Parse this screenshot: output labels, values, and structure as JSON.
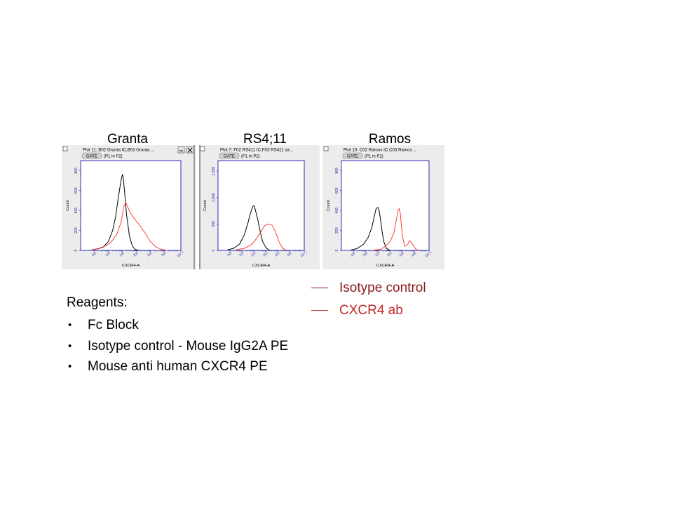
{
  "chart_data": [
    {
      "type": "line",
      "title": "Granta",
      "window_title": "Plot 11: B02 Granta IC,B03 Granta ...",
      "gate_button": "GATE",
      "gate_text": "(P1 in P2)",
      "xlabel": "CXCR4-A",
      "ylabel": "Count",
      "x_scale": "log",
      "x_ticks": [
        "10¹",
        "10²",
        "10³",
        "10⁴",
        "10⁵",
        "10⁶",
        "10⁷.²"
      ],
      "xlim": [
        0,
        7.2
      ],
      "y_ticks": [
        "0",
        "200",
        "400",
        "600",
        "800"
      ],
      "ylim": [
        0,
        900
      ],
      "grid": false,
      "series": [
        {
          "name": "Isotype control",
          "color": "#000000",
          "x": [
            0.8,
            1.2,
            1.6,
            2.0,
            2.3,
            2.5,
            2.7,
            2.9,
            3.0,
            3.05,
            3.15,
            3.3,
            3.5,
            3.7,
            3.9,
            4.2
          ],
          "y": [
            5,
            15,
            30,
            90,
            200,
            330,
            520,
            700,
            760,
            740,
            600,
            360,
            150,
            50,
            10,
            0
          ]
        },
        {
          "name": "CXCR4 ab",
          "color": "#ff2a2a",
          "x": [
            0.8,
            1.3,
            1.8,
            2.2,
            2.6,
            2.9,
            3.1,
            3.25,
            3.4,
            3.6,
            3.9,
            4.2,
            4.6,
            5.0,
            5.4,
            5.8,
            6.2
          ],
          "y": [
            5,
            20,
            45,
            85,
            160,
            280,
            440,
            480,
            430,
            370,
            310,
            260,
            180,
            90,
            35,
            10,
            0
          ]
        }
      ]
    },
    {
      "type": "line",
      "title": "RS4;11",
      "window_title": "Plot 7: F02 RS411 IC,F03 RS411 sa...",
      "gate_button": "GATE",
      "gate_text": "(P1 in P2)",
      "xlabel": "CXCR4-A",
      "ylabel": "Count",
      "x_scale": "log",
      "x_ticks": [
        "10¹",
        "10²",
        "10³",
        "10⁴",
        "10⁵",
        "10⁶",
        "10⁷.²"
      ],
      "xlim": [
        0,
        7.2
      ],
      "y_ticks": [
        "0",
        "500",
        "1,000",
        "1,500"
      ],
      "ylim": [
        0,
        1700
      ],
      "grid": false,
      "series": [
        {
          "name": "Isotype control",
          "color": "#000000",
          "x": [
            0.8,
            1.3,
            1.8,
            2.2,
            2.5,
            2.7,
            2.9,
            3.0,
            3.1,
            3.3,
            3.5,
            3.7,
            4.0,
            4.3
          ],
          "y": [
            10,
            40,
            120,
            300,
            520,
            700,
            830,
            850,
            780,
            600,
            380,
            180,
            50,
            0
          ]
        },
        {
          "name": "CXCR4 ab",
          "color": "#ff2a2a",
          "x": [
            1.5,
            2.2,
            2.8,
            3.2,
            3.6,
            3.9,
            4.2,
            4.5,
            4.8,
            5.1,
            5.4,
            5.7
          ],
          "y": [
            10,
            40,
            110,
            220,
            360,
            470,
            500,
            480,
            350,
            160,
            40,
            0
          ]
        }
      ]
    },
    {
      "type": "line",
      "title": "Ramos",
      "window_title": "Plot 10: C02 Ramos IC,C03 Ramos ...",
      "gate_button": "GATE",
      "gate_text": "(P1 in P2)",
      "xlabel": "CXCR4-A",
      "ylabel": "Count",
      "x_scale": "log",
      "x_ticks": [
        "10¹",
        "10²",
        "10³",
        "10⁴",
        "10⁵",
        "10⁶",
        "10⁷.²"
      ],
      "xlim": [
        0,
        7.2
      ],
      "y_ticks": [
        "0",
        "200",
        "400",
        "600",
        "800"
      ],
      "ylim": [
        0,
        900
      ],
      "grid": false,
      "series": [
        {
          "name": "Isotype control",
          "color": "#000000",
          "x": [
            0.8,
            1.3,
            1.8,
            2.2,
            2.5,
            2.7,
            2.85,
            3.0,
            3.1,
            3.2,
            3.35,
            3.5,
            3.7,
            4.0
          ],
          "y": [
            5,
            20,
            60,
            130,
            230,
            340,
            420,
            430,
            400,
            320,
            180,
            80,
            20,
            0
          ]
        },
        {
          "name": "CXCR4 ab",
          "color": "#ff2a2a",
          "x": [
            2.5,
            3.2,
            3.6,
            4.0,
            4.3,
            4.5,
            4.65,
            4.75,
            4.85,
            5.0,
            5.2,
            5.45,
            5.6,
            5.8,
            6.1,
            6.3
          ],
          "y": [
            0,
            10,
            40,
            90,
            170,
            300,
            400,
            420,
            360,
            150,
            40,
            60,
            100,
            70,
            15,
            0
          ]
        }
      ]
    }
  ],
  "legend": [
    {
      "label": "Isotype control",
      "color": "#8b1a1a"
    },
    {
      "label": "CXCR4 ab",
      "color": "#c0282a"
    }
  ],
  "reagents": {
    "heading": "Reagents:",
    "items": [
      "Fc Block",
      "Isotype control - Mouse IgG2A PE",
      "Mouse anti human CXCR4 PE"
    ]
  }
}
